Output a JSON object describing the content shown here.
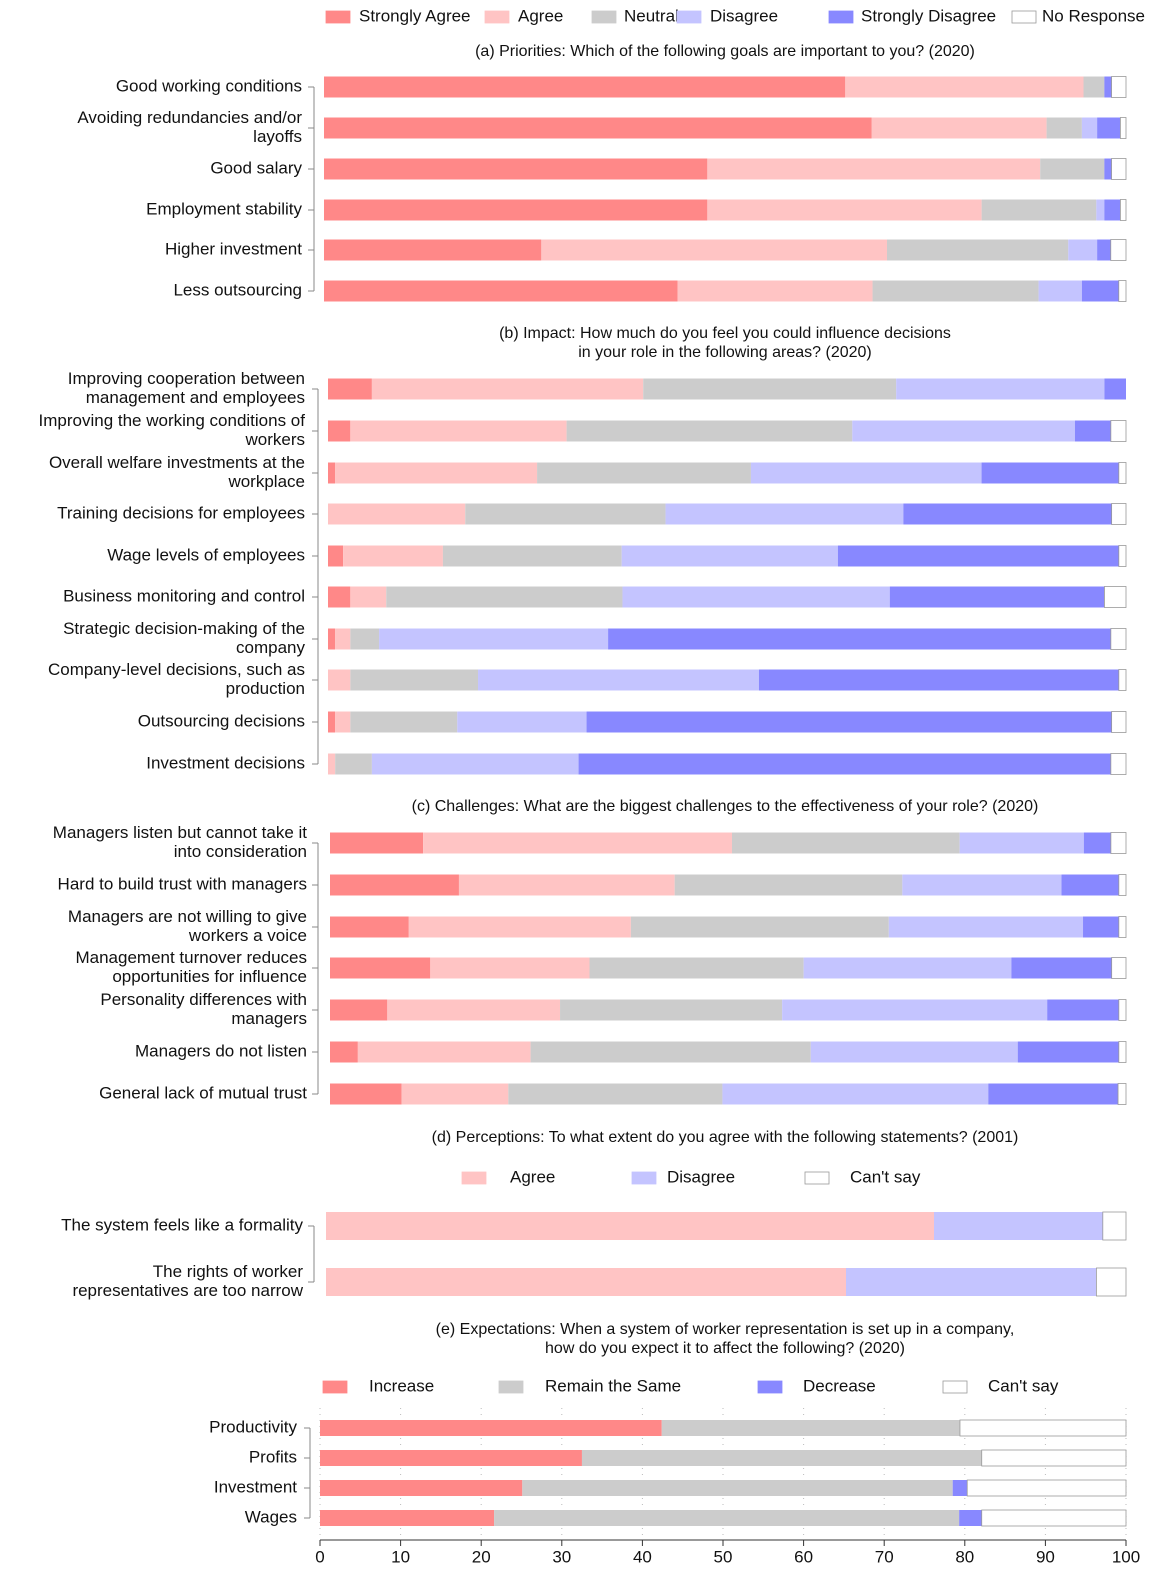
{
  "chart_data": [
    {
      "type": "bar",
      "orientation": "horizontal",
      "stacked": true,
      "legend": "top",
      "title": [
        "(a) Priorities: Which of the following goals are important to you? (2020)"
      ],
      "categories": [
        "Good working conditions",
        [
          "Avoiding redundancies and/or",
          "layoffs"
        ],
        "Good salary",
        "Employment stability",
        "Higher investment",
        "Less outsourcing"
      ],
      "xlim": [
        0,
        100
      ],
      "series": [
        {
          "name": "Strongly Agree",
          "color": "#ff8888",
          "values": [
            65.0,
            68.3,
            47.8,
            47.8,
            27.1,
            44.1
          ]
        },
        {
          "name": "Agree",
          "color": "#ffc4c4",
          "values": [
            29.7,
            21.8,
            41.5,
            34.2,
            43.1,
            24.3
          ]
        },
        {
          "name": "Neutral",
          "color": "#cccccc",
          "values": [
            2.6,
            4.4,
            8.0,
            14.3,
            22.6,
            20.7
          ]
        },
        {
          "name": "Disagree",
          "color": "#c4c4ff",
          "values": [
            0,
            1.9,
            0,
            1.0,
            3.6,
            5.4
          ]
        },
        {
          "name": "Strongly Disagree",
          "color": "#8888ff",
          "values": [
            0.9,
            2.9,
            0.9,
            2.0,
            1.7,
            4.6
          ]
        },
        {
          "name": "No Response",
          "color": "#ffffff",
          "values": [
            1.8,
            0.7,
            1.8,
            0.7,
            1.9,
            0.9
          ]
        }
      ]
    },
    {
      "type": "bar",
      "orientation": "horizontal",
      "stacked": true,
      "title": [
        "(b) Impact: How much do you feel you could influence decisions",
        "in your role in the following areas? (2020)"
      ],
      "categories": [
        [
          "Improving cooperation between",
          "management and employees"
        ],
        [
          "Improving the working conditions of",
          "workers"
        ],
        [
          "Overall welfare investments at the",
          "workplace"
        ],
        "Training decisions for employees",
        "Wage levels of employees",
        "Business monitoring and control",
        [
          "Strategic decision-making of the",
          "company"
        ],
        [
          "Company-level decisions, such as",
          "production"
        ],
        "Outsourcing decisions",
        "Investment decisions"
      ],
      "xlim": [
        0,
        100
      ],
      "series": [
        {
          "color": "#ff8888",
          "values": [
            5.5,
            2.8,
            0.9,
            0,
            1.9,
            2.8,
            0.9,
            0,
            0.9,
            0
          ]
        },
        {
          "color": "#ffc4c4",
          "values": [
            34.0,
            27.1,
            25.3,
            17.2,
            12.5,
            4.5,
            1.9,
            2.8,
            1.9,
            0.9
          ]
        },
        {
          "color": "#cccccc",
          "values": [
            31.7,
            35.8,
            26.8,
            25.1,
            22.4,
            29.6,
            3.6,
            16.0,
            13.4,
            4.6
          ]
        },
        {
          "color": "#c4c4ff",
          "values": [
            26.1,
            27.9,
            28.9,
            29.8,
            27.1,
            33.5,
            28.7,
            35.2,
            16.2,
            25.9
          ]
        },
        {
          "color": "#8888ff",
          "values": [
            2.7,
            4.5,
            17.2,
            26.1,
            35.2,
            26.9,
            63.0,
            45.1,
            65.8,
            66.7
          ]
        },
        {
          "color": "#ffffff",
          "values": [
            0,
            1.9,
            0.9,
            1.8,
            0.9,
            2.7,
            1.9,
            0.9,
            1.8,
            1.9
          ]
        }
      ]
    },
    {
      "type": "bar",
      "orientation": "horizontal",
      "stacked": true,
      "title": [
        "(c) Challenges: What are the biggest challenges to the effectiveness of your role? (2020)"
      ],
      "categories": [
        [
          "Managers listen but cannot take it",
          "into consideration"
        ],
        "Hard to build trust with managers",
        [
          "Managers are not willing to give",
          "workers a voice"
        ],
        [
          "Management turnover reduces",
          "opportunities for influence"
        ],
        [
          "Personality differences with",
          "managers"
        ],
        "Managers do not listen",
        "General lack of mutual trust"
      ],
      "xlim": [
        0,
        100
      ],
      "series": [
        {
          "color": "#ff8888",
          "values": [
            11.7,
            16.2,
            9.9,
            12.6,
            7.2,
            3.5,
            9.0
          ]
        },
        {
          "color": "#ffc4c4",
          "values": [
            38.8,
            27.1,
            27.9,
            20.0,
            21.7,
            21.7,
            13.4
          ]
        },
        {
          "color": "#cccccc",
          "values": [
            28.6,
            28.6,
            32.4,
            26.9,
            27.9,
            35.2,
            26.9
          ]
        },
        {
          "color": "#c4c4ff",
          "values": [
            15.6,
            20.0,
            24.4,
            26.1,
            33.3,
            26.0,
            33.4
          ]
        },
        {
          "color": "#8888ff",
          "values": [
            3.4,
            7.2,
            4.5,
            12.6,
            9.0,
            12.7,
            16.3
          ]
        },
        {
          "color": "#ffffff",
          "values": [
            1.9,
            0.9,
            0.9,
            1.8,
            0.9,
            0.9,
            1.0
          ]
        }
      ]
    },
    {
      "type": "bar",
      "orientation": "horizontal",
      "stacked": true,
      "legend": "top",
      "title": [
        "(d) Perceptions: To what extent do you agree with the following statements? (2001)"
      ],
      "categories": [
        "The system feels like a formality",
        [
          "The rights of worker",
          "representatives are too narrow"
        ]
      ],
      "xlim": [
        0,
        100
      ],
      "series": [
        {
          "name": "Agree",
          "color": "#ffc4c4",
          "values": [
            76.0,
            65.0
          ]
        },
        {
          "name": "Disagree",
          "color": "#c4c4ff",
          "values": [
            21.1,
            31.3
          ]
        },
        {
          "name": "Can't say",
          "color": "#ffffff",
          "values": [
            2.9,
            3.7
          ]
        }
      ]
    },
    {
      "type": "bar",
      "orientation": "horizontal",
      "stacked": true,
      "legend": "top",
      "grid": true,
      "title": [
        "(e) Expectations: When a system of worker representation is set up in a company,",
        "how do you expect it to affect the following? (2020)"
      ],
      "categories": [
        "Productivity",
        "Profits",
        "Investment",
        "Wages"
      ],
      "xlim": [
        0,
        100
      ],
      "xticks": [
        0,
        10,
        20,
        30,
        40,
        50,
        60,
        70,
        80,
        90,
        100
      ],
      "series": [
        {
          "name": "Increase",
          "color": "#ff8888",
          "values": [
            42.4,
            32.5,
            25.1,
            21.6
          ]
        },
        {
          "name": "Remain the Same",
          "color": "#cccccc",
          "values": [
            37.0,
            49.6,
            53.4,
            57.7
          ]
        },
        {
          "name": "Decrease",
          "color": "#8888ff",
          "values": [
            0,
            0,
            1.8,
            2.8
          ]
        },
        {
          "name": "Can't say",
          "color": "#ffffff",
          "values": [
            20.6,
            17.9,
            19.7,
            17.9
          ]
        }
      ]
    }
  ]
}
